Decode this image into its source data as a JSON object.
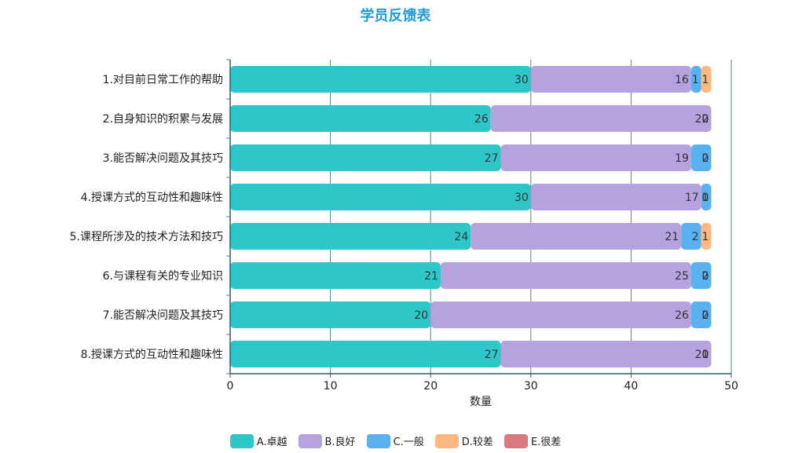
{
  "chart_data": {
    "type": "bar",
    "orientation": "horizontal",
    "stacked": true,
    "title": "学员反馈表",
    "xlabel": "数量",
    "ylabel": "",
    "xlim": [
      0,
      50
    ],
    "x_ticks": [
      "0",
      "10",
      "20",
      "30",
      "40",
      "50"
    ],
    "grid": true,
    "legend_position": "bottom",
    "categories": [
      "1.对目前日常工作的帮助",
      "2.自身知识的积累与发展",
      "3.能否解决问题及其技巧",
      "4.授课方式的互动性和趣味性",
      "5.课程所涉及的技术方法和技巧",
      "6.与课程有关的专业知识",
      "7.能否解决问题及其技巧",
      "8.授课方式的互动性和趣味性"
    ],
    "series": [
      {
        "name": "A.卓越",
        "color": "#2ec7c9",
        "values": [
          30,
          26,
          27,
          30,
          24,
          21,
          20,
          27
        ]
      },
      {
        "name": "B.良好",
        "color": "#b6a2de",
        "values": [
          16,
          22,
          19,
          17,
          21,
          25,
          26,
          21
        ]
      },
      {
        "name": "C.一般",
        "color": "#5ab1ef",
        "values": [
          1,
          0,
          2,
          1,
          2,
          2,
          2,
          0
        ]
      },
      {
        "name": "D.较差",
        "color": "#ffb980",
        "values": [
          1,
          0,
          0,
          0,
          1,
          0,
          0,
          0
        ]
      },
      {
        "name": "E.很差",
        "color": "#d87a80",
        "values": [
          0,
          0,
          0,
          0,
          0,
          0,
          0,
          0
        ]
      }
    ]
  }
}
